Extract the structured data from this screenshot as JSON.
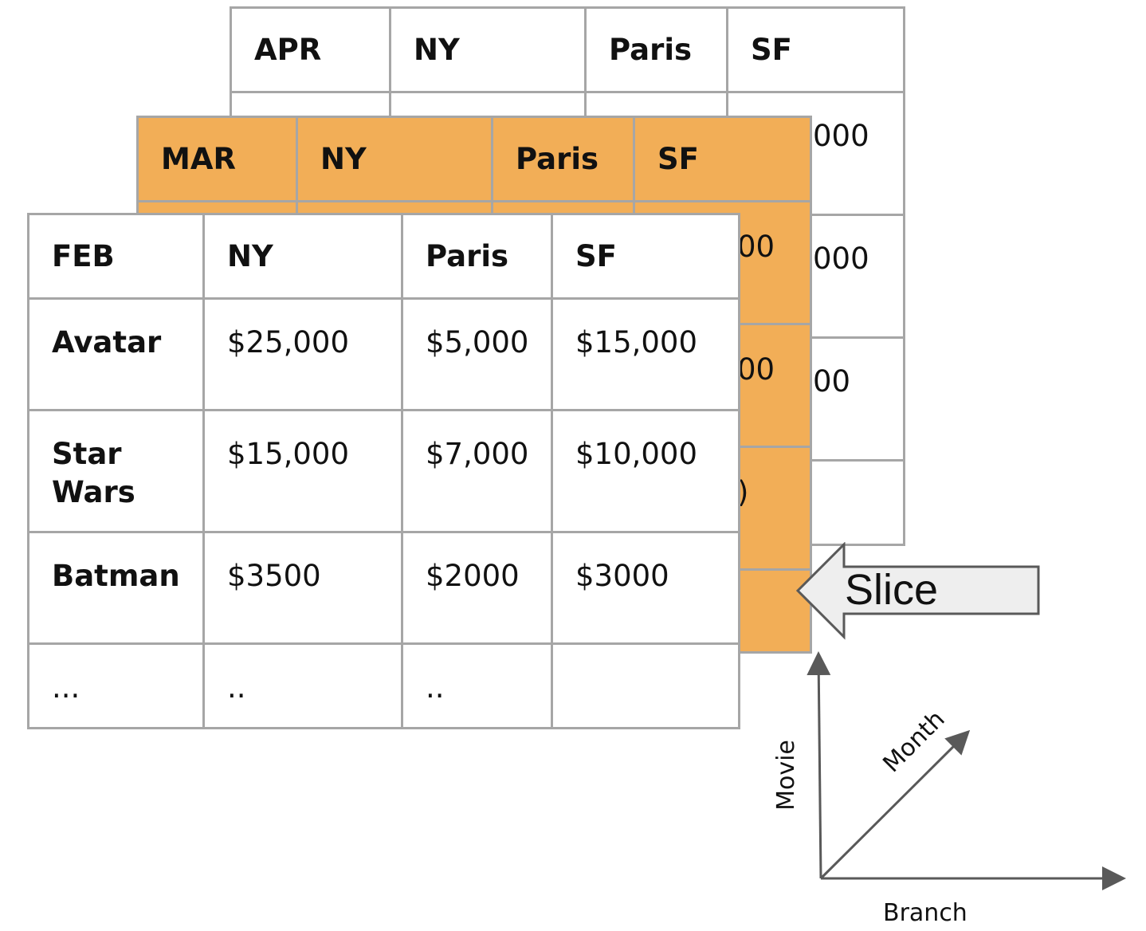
{
  "tables": {
    "apr": {
      "corner": "APR",
      "columns": [
        "NY",
        "Paris",
        "SF"
      ],
      "visible_fragments": [
        "000",
        "000",
        "00"
      ]
    },
    "mar": {
      "corner": "MAR",
      "columns": [
        "NY",
        "Paris",
        "SF"
      ],
      "visible_fragments": [
        "00",
        "00",
        ")"
      ]
    },
    "feb": {
      "corner": "FEB",
      "columns": [
        "NY",
        "Paris",
        "SF"
      ],
      "rows": [
        {
          "label": "Avatar",
          "values": [
            "$25,000",
            "$5,000",
            "$15,000"
          ]
        },
        {
          "label": "Star Wars",
          "values": [
            "$15,000",
            "$7,000",
            "$10,000"
          ]
        },
        {
          "label": "Batman",
          "values": [
            "$3500",
            "$2000",
            "$3000"
          ]
        },
        {
          "label": "...",
          "values": [
            "..",
            "..",
            ""
          ]
        }
      ]
    }
  },
  "slice": {
    "label": "Slice"
  },
  "axes": {
    "vertical": "Movie",
    "diagonal": "Month",
    "horizontal": "Branch"
  },
  "colors": {
    "highlight": "#f2ae57",
    "border": "#a6a6a6",
    "arrow_fill": "#eeeeee",
    "axis": "#595959"
  }
}
